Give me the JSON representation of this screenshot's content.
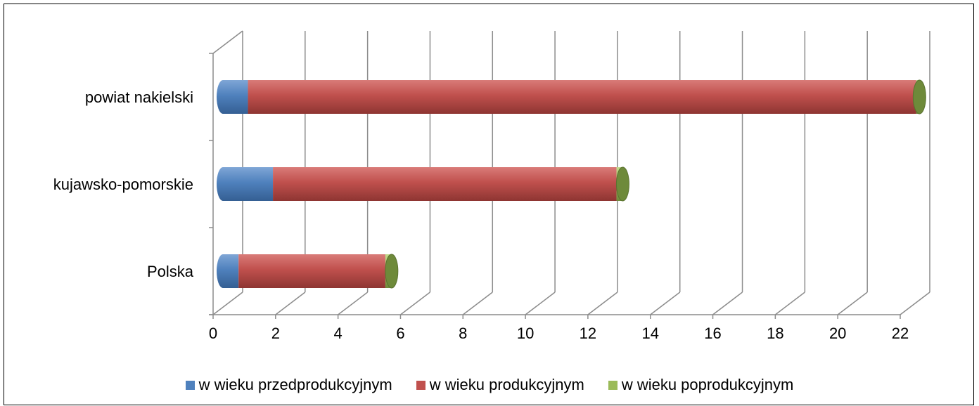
{
  "chart_data": {
    "type": "bar",
    "orientation": "horizontal",
    "stacked": true,
    "style": "3d-cylinder",
    "categories": [
      "powiat nakielski",
      "kujawsko-pomorskie",
      "Polska"
    ],
    "series": [
      {
        "name": "w wieku przedprodukcyjnym",
        "color": "#4F81BD",
        "values": [
          0.8,
          1.6,
          0.5
        ]
      },
      {
        "name": "w wieku produkcyjnym",
        "color": "#C0504D",
        "values": [
          21.4,
          11.0,
          4.7
        ]
      },
      {
        "name": "w wieku poprodukcyjnym",
        "color": "#9BBB59",
        "values": [
          0.1,
          0.2,
          0.2
        ]
      }
    ],
    "x_ticks": [
      "0",
      "2",
      "4",
      "6",
      "8",
      "10",
      "12",
      "14",
      "16",
      "18",
      "20",
      "22"
    ],
    "xlim": [
      0,
      22
    ],
    "grid": true,
    "legend_position": "bottom",
    "title": "",
    "xlabel": "",
    "ylabel": ""
  }
}
